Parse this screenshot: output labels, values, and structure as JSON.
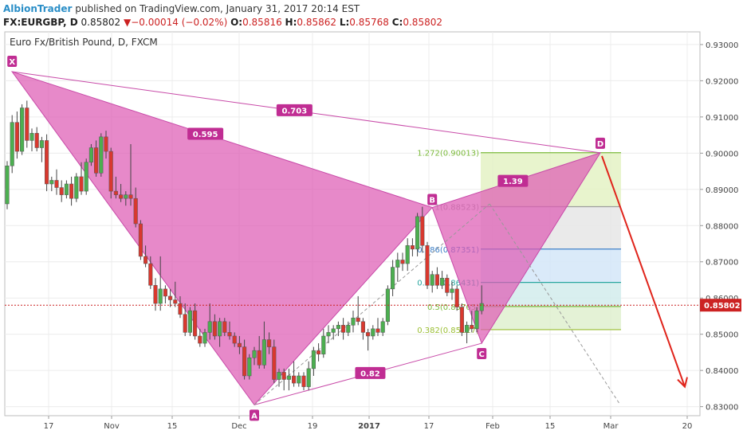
{
  "header": {
    "author": "AlbionTrader",
    "published": " published on TradingView.com, January 31, 2017 20:14 EST",
    "symbol": "FX:EURGBP, D",
    "last": "0.85802",
    "arrow": "▼",
    "change": "−0.00014 (−0.02%)",
    "o_label": "O:",
    "o_value": "0.85816",
    "h_label": "H:",
    "h_value": "0.85862",
    "l_label": "L:",
    "l_value": "0.85768",
    "c_label": "C:",
    "c_value": "0.85802"
  },
  "colors": {
    "up": "#4caf50",
    "down": "#d9382e",
    "pattern_fill": "#de5cb4",
    "pattern_line": "#c84aa8",
    "label_bg": "#c02d93",
    "price_line": "#cc2222",
    "projection": "#e0241b"
  },
  "chart_data": {
    "type": "candlestick",
    "title": "Euro Fx/British Pound, D, FXCM",
    "ylim": [
      0.8275,
      0.9335
    ],
    "yticks": [
      "0.93000",
      "0.92000",
      "0.91000",
      "0.90000",
      "0.89000",
      "0.88000",
      "0.87000",
      "0.86000",
      "0.85000",
      "0.84000",
      "0.83000"
    ],
    "xticks": [
      "17",
      "Nov",
      "15",
      "Dec",
      "19",
      "2017",
      "17",
      "Feb",
      "15",
      "Mar",
      "20"
    ],
    "last_price_label": "0.85802",
    "last_price": 0.85802,
    "candles": [
      [
        0.886,
        0.8978,
        0.8845,
        0.8965
      ],
      [
        0.8965,
        0.9105,
        0.8945,
        0.9085
      ],
      [
        0.9085,
        0.9115,
        0.8985,
        0.9005
      ],
      [
        0.9005,
        0.9135,
        0.8995,
        0.9125
      ],
      [
        0.9125,
        0.9145,
        0.9015,
        0.9035
      ],
      [
        0.9035,
        0.9068,
        0.9005,
        0.9055
      ],
      [
        0.9055,
        0.9072,
        0.9005,
        0.9015
      ],
      [
        0.9015,
        0.9045,
        0.8975,
        0.9035
      ],
      [
        0.9035,
        0.9052,
        0.8895,
        0.8915
      ],
      [
        0.8915,
        0.8935,
        0.8895,
        0.8925
      ],
      [
        0.8925,
        0.8955,
        0.8885,
        0.8905
      ],
      [
        0.8905,
        0.8925,
        0.8865,
        0.8885
      ],
      [
        0.8885,
        0.8925,
        0.8875,
        0.8915
      ],
      [
        0.8915,
        0.8935,
        0.8855,
        0.8875
      ],
      [
        0.8875,
        0.8945,
        0.8865,
        0.8935
      ],
      [
        0.8935,
        0.8975,
        0.8885,
        0.8895
      ],
      [
        0.8895,
        0.8985,
        0.8885,
        0.8975
      ],
      [
        0.8975,
        0.9025,
        0.8965,
        0.9015
      ],
      [
        0.9015,
        0.9035,
        0.8935,
        0.8945
      ],
      [
        0.8945,
        0.9055,
        0.8935,
        0.9045
      ],
      [
        0.9045,
        0.9062,
        0.8985,
        0.9005
      ],
      [
        0.9005,
        0.9015,
        0.8875,
        0.8895
      ],
      [
        0.8895,
        0.8935,
        0.8875,
        0.8885
      ],
      [
        0.8885,
        0.8915,
        0.8865,
        0.8875
      ],
      [
        0.8875,
        0.8895,
        0.8855,
        0.8885
      ],
      [
        0.8885,
        0.9025,
        0.8855,
        0.8875
      ],
      [
        0.8875,
        0.8905,
        0.8795,
        0.8805
      ],
      [
        0.8805,
        0.8815,
        0.8705,
        0.8715
      ],
      [
        0.8715,
        0.8745,
        0.8685,
        0.8695
      ],
      [
        0.8695,
        0.8715,
        0.8625,
        0.8635
      ],
      [
        0.8635,
        0.8655,
        0.8565,
        0.8585
      ],
      [
        0.8585,
        0.8715,
        0.8565,
        0.8625
      ],
      [
        0.8625,
        0.8635,
        0.8585,
        0.8605
      ],
      [
        0.8605,
        0.8625,
        0.8575,
        0.8595
      ],
      [
        0.8595,
        0.8645,
        0.8575,
        0.8585
      ],
      [
        0.8585,
        0.8605,
        0.8545,
        0.8555
      ],
      [
        0.8555,
        0.8585,
        0.8495,
        0.8505
      ],
      [
        0.8505,
        0.8575,
        0.8495,
        0.8565
      ],
      [
        0.8565,
        0.8585,
        0.8485,
        0.8495
      ],
      [
        0.8495,
        0.8515,
        0.8465,
        0.8475
      ],
      [
        0.8475,
        0.8515,
        0.8465,
        0.8505
      ],
      [
        0.8505,
        0.8585,
        0.8485,
        0.8535
      ],
      [
        0.8535,
        0.8555,
        0.8485,
        0.8495
      ],
      [
        0.8495,
        0.8545,
        0.8465,
        0.8535
      ],
      [
        0.8535,
        0.8545,
        0.8495,
        0.8505
      ],
      [
        0.8505,
        0.8535,
        0.8485,
        0.8495
      ],
      [
        0.8495,
        0.8505,
        0.8465,
        0.8475
      ],
      [
        0.8475,
        0.8495,
        0.8445,
        0.8465
      ],
      [
        0.8465,
        0.8485,
        0.8375,
        0.8385
      ],
      [
        0.8385,
        0.8445,
        0.8375,
        0.8435
      ],
      [
        0.8435,
        0.8465,
        0.8415,
        0.8455
      ],
      [
        0.8455,
        0.8495,
        0.8405,
        0.8415
      ],
      [
        0.8415,
        0.8535,
        0.8405,
        0.8485
      ],
      [
        0.8485,
        0.8505,
        0.8445,
        0.8465
      ],
      [
        0.8465,
        0.8485,
        0.8365,
        0.8375
      ],
      [
        0.8375,
        0.8405,
        0.8355,
        0.8395
      ],
      [
        0.8395,
        0.8405,
        0.8345,
        0.8375
      ],
      [
        0.8375,
        0.8405,
        0.8345,
        0.8385
      ],
      [
        0.8385,
        0.8425,
        0.8355,
        0.8365
      ],
      [
        0.8365,
        0.8395,
        0.8355,
        0.8385
      ],
      [
        0.8385,
        0.8395,
        0.8345,
        0.8355
      ],
      [
        0.8355,
        0.8425,
        0.8345,
        0.8405
      ],
      [
        0.8405,
        0.8465,
        0.8385,
        0.8455
      ],
      [
        0.8455,
        0.8475,
        0.8425,
        0.8445
      ],
      [
        0.8445,
        0.8515,
        0.8435,
        0.8495
      ],
      [
        0.8495,
        0.8525,
        0.8475,
        0.8505
      ],
      [
        0.8505,
        0.8525,
        0.8485,
        0.8515
      ],
      [
        0.8515,
        0.8535,
        0.8495,
        0.8525
      ],
      [
        0.8525,
        0.8545,
        0.8485,
        0.8505
      ],
      [
        0.8505,
        0.8535,
        0.8495,
        0.8525
      ],
      [
        0.8525,
        0.8565,
        0.8505,
        0.8545
      ],
      [
        0.8545,
        0.8605,
        0.8525,
        0.8535
      ],
      [
        0.8535,
        0.8545,
        0.8485,
        0.8505
      ],
      [
        0.8505,
        0.8515,
        0.8455,
        0.8495
      ],
      [
        0.8495,
        0.8525,
        0.8485,
        0.8515
      ],
      [
        0.8515,
        0.8545,
        0.8495,
        0.8505
      ],
      [
        0.8505,
        0.8545,
        0.8495,
        0.8535
      ],
      [
        0.8535,
        0.8635,
        0.8525,
        0.8625
      ],
      [
        0.8625,
        0.8705,
        0.8605,
        0.8685
      ],
      [
        0.8685,
        0.8725,
        0.8645,
        0.8705
      ],
      [
        0.8705,
        0.8725,
        0.8675,
        0.8695
      ],
      [
        0.8695,
        0.8765,
        0.8675,
        0.8745
      ],
      [
        0.8745,
        0.8765,
        0.8715,
        0.8735
      ],
      [
        0.8735,
        0.8835,
        0.8715,
        0.8825
      ],
      [
        0.8825,
        0.8852,
        0.8725,
        0.8745
      ],
      [
        0.8745,
        0.8755,
        0.8625,
        0.8635
      ],
      [
        0.8635,
        0.8675,
        0.8615,
        0.8665
      ],
      [
        0.8665,
        0.8685,
        0.8625,
        0.8635
      ],
      [
        0.8635,
        0.8675,
        0.8625,
        0.8655
      ],
      [
        0.8655,
        0.8665,
        0.8605,
        0.8615
      ],
      [
        0.8615,
        0.8645,
        0.8595,
        0.8625
      ],
      [
        0.8625,
        0.8635,
        0.8565,
        0.8575
      ],
      [
        0.8575,
        0.8585,
        0.8495,
        0.8505
      ],
      [
        0.8505,
        0.8535,
        0.8475,
        0.8525
      ],
      [
        0.8525,
        0.8565,
        0.8505,
        0.8515
      ],
      [
        0.8515,
        0.8575,
        0.8505,
        0.8565
      ],
      [
        0.8565,
        0.8635,
        0.8555,
        0.8585
      ]
    ],
    "pattern": {
      "points": [
        {
          "label": "X",
          "date_index": 1,
          "price": 0.9225
        },
        {
          "label": "A",
          "date_index": 50,
          "price": 0.8305
        },
        {
          "label": "B",
          "date_index": 86,
          "price": 0.885
        },
        {
          "label": "C",
          "date_index": 96,
          "price": 0.8475
        },
        {
          "label": "D",
          "date_index": 120,
          "price": 0.9001
        }
      ],
      "ratios": [
        "0.595",
        "0.703",
        "1.39",
        "0.82"
      ]
    },
    "fib_levels": [
      {
        "label": "1.272(0.90013)",
        "price": 0.90013,
        "color": "#7cba3c",
        "fill": "#e4f2c4"
      },
      {
        "label": "1(0.88523)",
        "price": 0.88523,
        "color": "#9e9e9e",
        "fill": "#e6e6e6"
      },
      {
        "label": "0.786(0.87351)",
        "price": 0.87351,
        "color": "#3d7fc7",
        "fill": "#d3e6f8"
      },
      {
        "label": "0.618(0.86431)",
        "price": 0.86431,
        "color": "#2aa7a0",
        "fill": "#d2ecec"
      },
      {
        "label": "0.5(0.85765)",
        "price": 0.85765,
        "color": "#7cba3c",
        "fill": "#dff0cf"
      },
      {
        "label": "0.382(0.85127)",
        "price": 0.85127,
        "color": "#9bbf33",
        "fill": "#d6efc8"
      }
    ]
  }
}
